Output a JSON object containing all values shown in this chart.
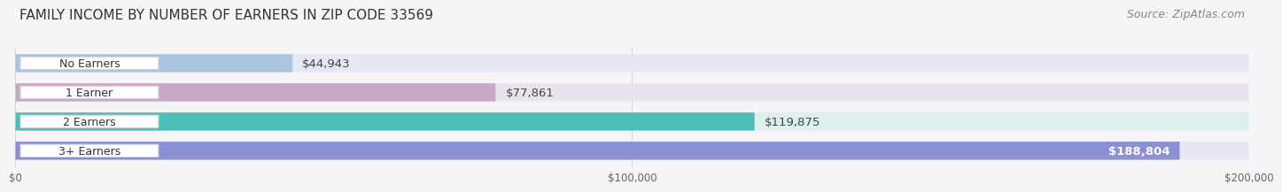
{
  "title": "FAMILY INCOME BY NUMBER OF EARNERS IN ZIP CODE 33569",
  "source": "Source: ZipAtlas.com",
  "categories": [
    "No Earners",
    "1 Earner",
    "2 Earners",
    "3+ Earners"
  ],
  "values": [
    44943,
    77861,
    119875,
    188804
  ],
  "labels": [
    "$44,943",
    "$77,861",
    "$119,875",
    "$188,804"
  ],
  "bar_colors": [
    "#aac5e2",
    "#c8a8ca",
    "#4cbfb9",
    "#8b8fd4"
  ],
  "label_colors": [
    "#555555",
    "#555555",
    "#555555",
    "#ffffff"
  ],
  "bg_color": [
    "#e4e8f0",
    "#eae4ee",
    "#ddf0ee",
    "#e8e8f4"
  ],
  "xlim": [
    0,
    200000
  ],
  "xtick_labels": [
    "$0",
    "$100,000",
    "$200,000"
  ],
  "xtick_values": [
    0,
    100000,
    200000
  ],
  "title_fontsize": 11,
  "source_fontsize": 9,
  "bar_label_fontsize": 9.5,
  "category_fontsize": 9,
  "background_color": "#f5f5f7"
}
